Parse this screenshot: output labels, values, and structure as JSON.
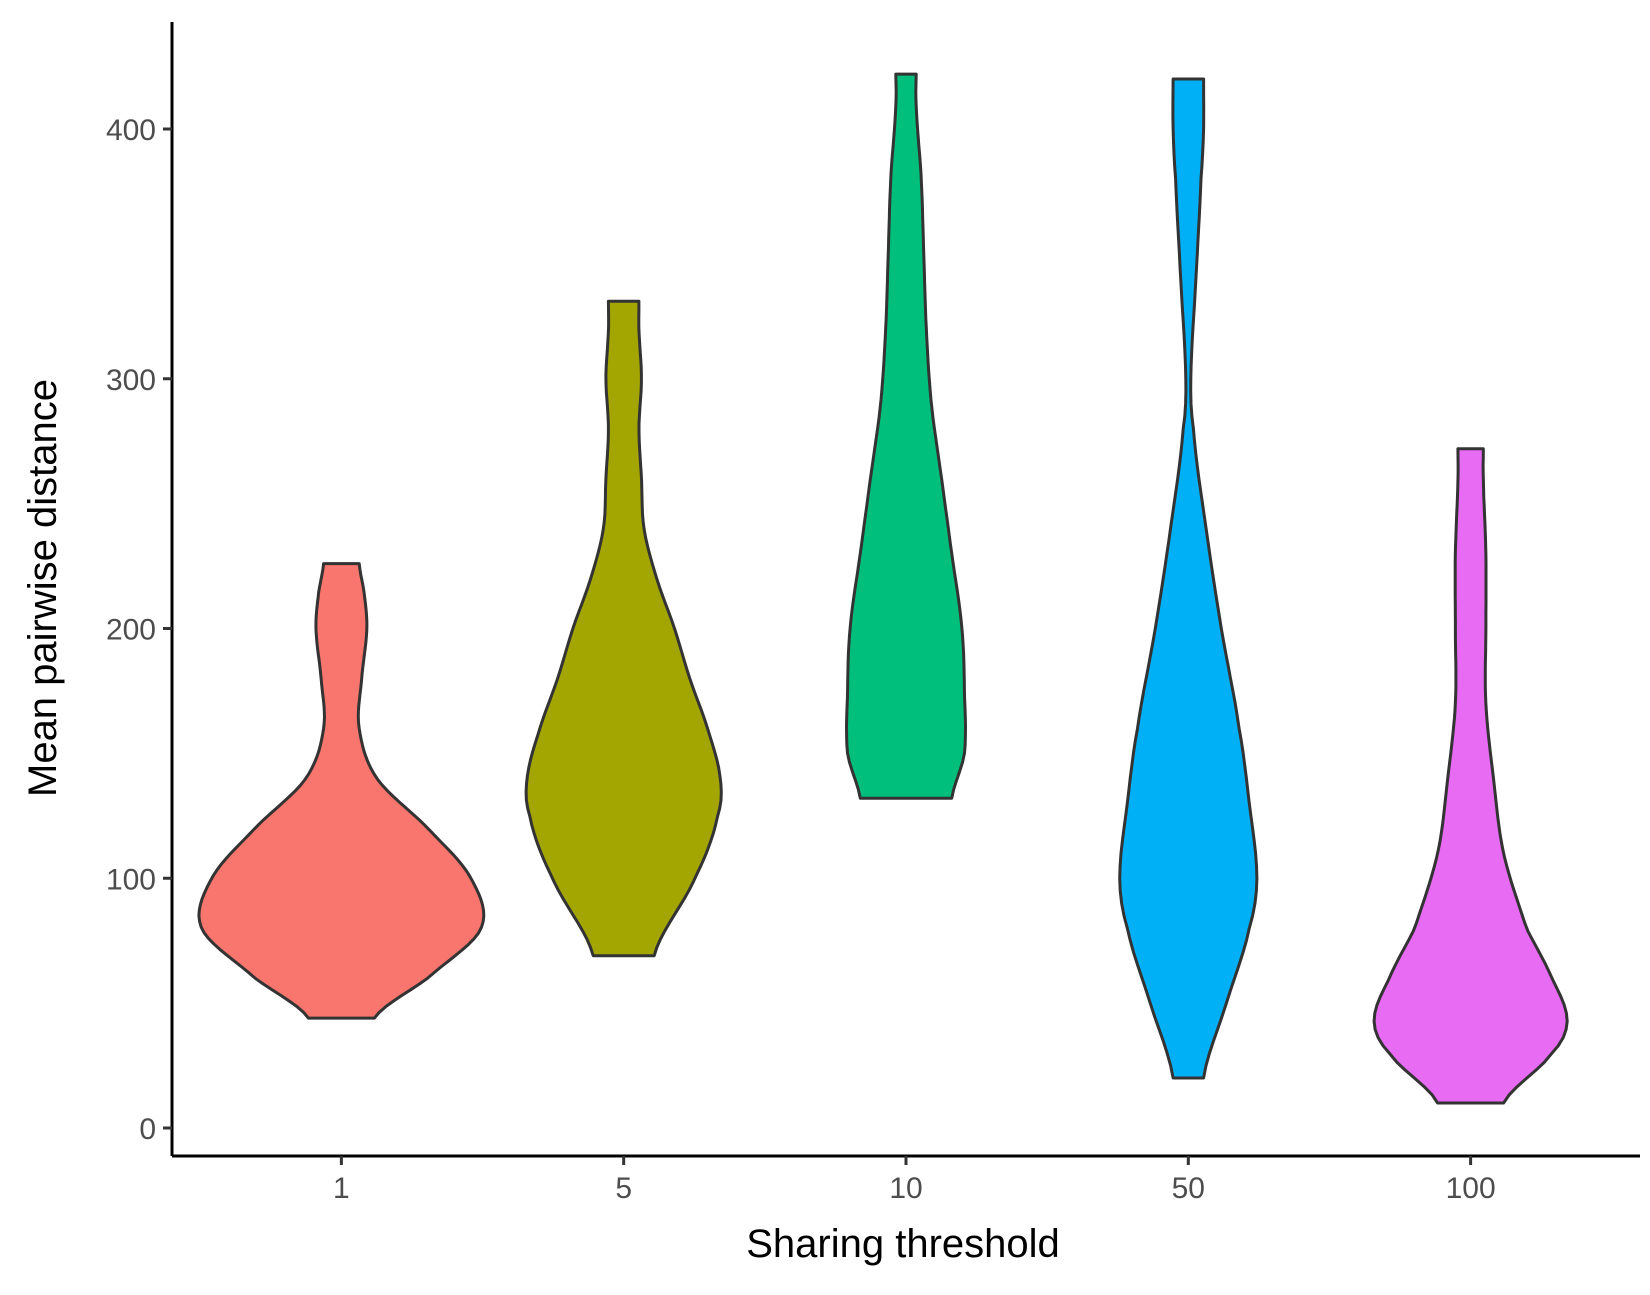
{
  "chart_data": {
    "type": "violin",
    "title": "",
    "xlabel": "Sharing threshold",
    "ylabel": "Mean pairwise distance",
    "ylim": [
      -10,
      445
    ],
    "yticks": [
      0,
      100,
      200,
      300,
      400
    ],
    "ytick_labels": [
      "0",
      "100",
      "200",
      "300",
      "400"
    ],
    "categories": [
      "1",
      "5",
      "10",
      "50",
      "100"
    ],
    "grid": false,
    "legend": "none",
    "stroke_color": "#333333",
    "violins": [
      {
        "category": "1",
        "color": "#F8766D",
        "min": 44,
        "max": 226,
        "profile": [
          [
            44,
            0.13
          ],
          [
            60,
            0.34
          ],
          [
            80,
            0.55
          ],
          [
            100,
            0.51
          ],
          [
            120,
            0.34
          ],
          [
            140,
            0.14
          ],
          [
            160,
            0.07
          ],
          [
            180,
            0.08
          ],
          [
            200,
            0.1
          ],
          [
            214,
            0.09
          ],
          [
            226,
            0.07
          ]
        ]
      },
      {
        "category": "5",
        "color": "#A3A500",
        "min": 69,
        "max": 331,
        "profile": [
          [
            69,
            0.12
          ],
          [
            100,
            0.28
          ],
          [
            125,
            0.37
          ],
          [
            140,
            0.38
          ],
          [
            160,
            0.33
          ],
          [
            180,
            0.26
          ],
          [
            200,
            0.2
          ],
          [
            220,
            0.13
          ],
          [
            240,
            0.08
          ],
          [
            260,
            0.07
          ],
          [
            280,
            0.06
          ],
          [
            300,
            0.07
          ],
          [
            320,
            0.06
          ],
          [
            331,
            0.06
          ]
        ]
      },
      {
        "category": "10",
        "color": "#00BF7D",
        "min": 132,
        "max": 422,
        "profile": [
          [
            132,
            0.18
          ],
          [
            150,
            0.23
          ],
          [
            175,
            0.23
          ],
          [
            200,
            0.22
          ],
          [
            230,
            0.18
          ],
          [
            260,
            0.14
          ],
          [
            290,
            0.1
          ],
          [
            320,
            0.08
          ],
          [
            350,
            0.07
          ],
          [
            380,
            0.06
          ],
          [
            410,
            0.04
          ],
          [
            422,
            0.04
          ]
        ]
      },
      {
        "category": "50",
        "color": "#00B0F6",
        "min": 20,
        "max": 420,
        "profile": [
          [
            20,
            0.06
          ],
          [
            50,
            0.15
          ],
          [
            80,
            0.24
          ],
          [
            100,
            0.27
          ],
          [
            130,
            0.24
          ],
          [
            160,
            0.2
          ],
          [
            200,
            0.13
          ],
          [
            240,
            0.07
          ],
          [
            280,
            0.02
          ],
          [
            300,
            0.01
          ],
          [
            340,
            0.03
          ],
          [
            380,
            0.05
          ],
          [
            400,
            0.06
          ],
          [
            420,
            0.06
          ]
        ]
      },
      {
        "category": "100",
        "color": "#E76BF3",
        "min": 10,
        "max": 272,
        "profile": [
          [
            10,
            0.13
          ],
          [
            30,
            0.32
          ],
          [
            43,
            0.38
          ],
          [
            60,
            0.32
          ],
          [
            80,
            0.22
          ],
          [
            110,
            0.13
          ],
          [
            140,
            0.09
          ],
          [
            170,
            0.06
          ],
          [
            200,
            0.06
          ],
          [
            230,
            0.06
          ],
          [
            260,
            0.05
          ],
          [
            272,
            0.05
          ]
        ]
      }
    ]
  }
}
